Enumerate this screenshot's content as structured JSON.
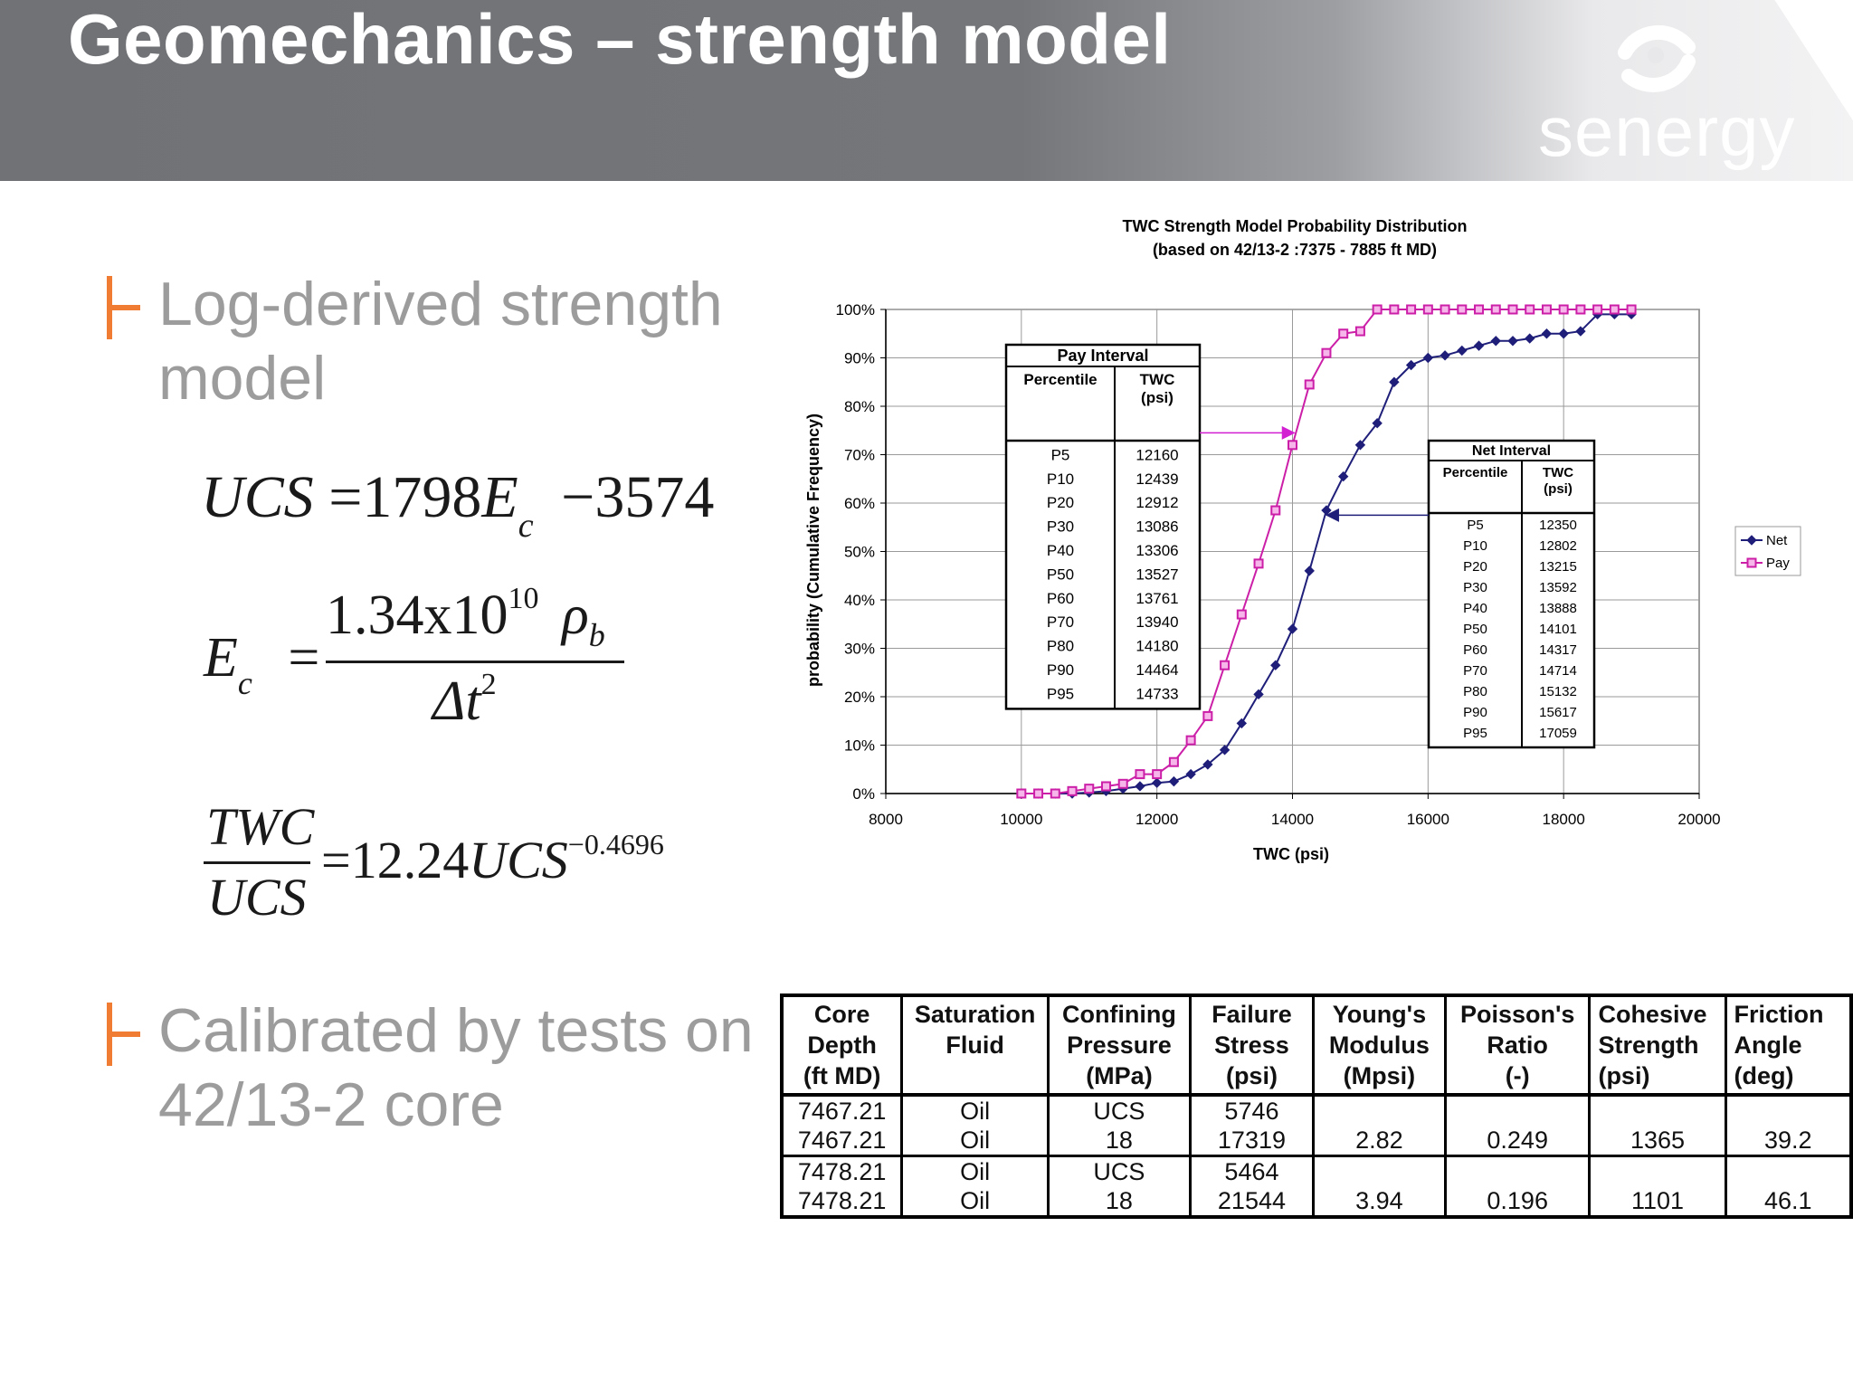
{
  "header": {
    "title": "Geomechanics – strength model",
    "brand": "senergy"
  },
  "bullets": [
    {
      "text_line1": "Log-derived strength",
      "text_line2": "model"
    },
    {
      "text_line1": "Calibrated by tests on",
      "text_line2": "42/13-2 core"
    }
  ],
  "equations": {
    "ucs": {
      "lhs": "UCS",
      "eq": "=",
      "coef": "1798",
      "var": "E",
      "sub": "c",
      "minus": "−",
      "const": "3574"
    },
    "ec": {
      "lhs": "E",
      "sub": "c",
      "eq": "=",
      "num_coef": "1.34x10",
      "num_exp": "10",
      "num_var": "ρ",
      "num_sub": "b",
      "den": "Δt",
      "den_exp": "2"
    },
    "twc": {
      "num": "TWC",
      "den": "UCS",
      "eq": "=",
      "coef": "12.24",
      "var": "UCS",
      "exp": "−0.4696"
    }
  },
  "chart_data": {
    "type": "line",
    "title": "TWC Strength Model Probability Distribution",
    "subtitle": "(based on 42/13-2 :7375 - 7885 ft MD)",
    "xlabel": "TWC (psi)",
    "ylabel": "probability (Cumulative Frequency)",
    "xlim": [
      8000,
      20000
    ],
    "ylim": [
      0,
      1
    ],
    "x_ticks": [
      "8000",
      "10000",
      "12000",
      "14000",
      "16000",
      "18000",
      "20000"
    ],
    "y_ticks": [
      "0%",
      "10%",
      "20%",
      "30%",
      "40%",
      "50%",
      "60%",
      "70%",
      "80%",
      "90%",
      "100%"
    ],
    "grid": true,
    "legend_position": "right",
    "series": [
      {
        "name": "Net",
        "color": "#1f1f7a",
        "marker": "diamond",
        "x": [
          10000,
          10250,
          10500,
          10750,
          11000,
          11250,
          11500,
          11750,
          12000,
          12250,
          12500,
          12750,
          13000,
          13250,
          13500,
          13750,
          14000,
          14250,
          14500,
          14750,
          15000,
          15250,
          15500,
          15750,
          16000,
          16250,
          16500,
          16750,
          17000,
          17250,
          17500,
          17750,
          18000,
          18250,
          18500,
          18750,
          19000
        ],
        "y": [
          0,
          0,
          0,
          0,
          0.002,
          0.005,
          0.01,
          0.015,
          0.022,
          0.025,
          0.04,
          0.06,
          0.09,
          0.145,
          0.205,
          0.265,
          0.34,
          0.46,
          0.585,
          0.655,
          0.72,
          0.765,
          0.85,
          0.885,
          0.9,
          0.905,
          0.915,
          0.925,
          0.935,
          0.935,
          0.94,
          0.95,
          0.95,
          0.955,
          0.99,
          0.99,
          0.99
        ]
      },
      {
        "name": "Pay",
        "color": "#cc1fa8",
        "marker": "square",
        "x": [
          10000,
          10250,
          10500,
          10750,
          11000,
          11250,
          11500,
          11750,
          12000,
          12250,
          12500,
          12750,
          13000,
          13250,
          13500,
          13750,
          14000,
          14250,
          14500,
          14750,
          15000,
          15250,
          15500,
          15750,
          16000,
          16250,
          16500,
          16750,
          17000,
          17250,
          17500,
          17750,
          18000,
          18250,
          18500,
          18750,
          19000
        ],
        "y": [
          0,
          0,
          0,
          0.005,
          0.01,
          0.015,
          0.02,
          0.04,
          0.04,
          0.065,
          0.11,
          0.16,
          0.265,
          0.37,
          0.475,
          0.585,
          0.72,
          0.845,
          0.91,
          0.95,
          0.955,
          1,
          1,
          1,
          1,
          1,
          1,
          1,
          1,
          1,
          1,
          1,
          1,
          1,
          1,
          1,
          1
        ]
      }
    ],
    "annotation_arrows": [
      {
        "from": "Pay Interval",
        "to_series": "Pay",
        "at_y": 0.745
      },
      {
        "from": "Net Interval",
        "to_series": "Net",
        "at_y": 0.575
      }
    ],
    "inset_tables": [
      {
        "title": "Pay Interval",
        "col1": "Percentile",
        "col2": "TWC",
        "col2_unit": "(psi)",
        "rows": [
          [
            "P5",
            "12160"
          ],
          [
            "P10",
            "12439"
          ],
          [
            "P20",
            "12912"
          ],
          [
            "P30",
            "13086"
          ],
          [
            "P40",
            "13306"
          ],
          [
            "P50",
            "13527"
          ],
          [
            "P60",
            "13761"
          ],
          [
            "P70",
            "13940"
          ],
          [
            "P80",
            "14180"
          ],
          [
            "P90",
            "14464"
          ],
          [
            "P95",
            "14733"
          ]
        ]
      },
      {
        "title": "Net Interval",
        "col1": "Percentile",
        "col2": "TWC",
        "col2_unit": "(psi)",
        "rows": [
          [
            "P5",
            "12350"
          ],
          [
            "P10",
            "12802"
          ],
          [
            "P20",
            "13215"
          ],
          [
            "P30",
            "13592"
          ],
          [
            "P40",
            "13888"
          ],
          [
            "P50",
            "14101"
          ],
          [
            "P60",
            "14317"
          ],
          [
            "P70",
            "14714"
          ],
          [
            "P80",
            "15132"
          ],
          [
            "P90",
            "15617"
          ],
          [
            "P95",
            "17059"
          ]
        ]
      }
    ]
  },
  "core_table": {
    "headers": [
      [
        "Core",
        "Depth",
        "(ft MD)"
      ],
      [
        "Saturation",
        "Fluid",
        ""
      ],
      [
        "Confining",
        "Pressure",
        "(MPa)"
      ],
      [
        "Failure",
        "Stress",
        "(psi)"
      ],
      [
        "Young's",
        "Modulus",
        "(Mpsi)"
      ],
      [
        "Poisson's",
        "Ratio",
        "(-)"
      ],
      [
        "Cohesive",
        "Strength",
        "(psi)"
      ],
      [
        "Friction",
        "Angle",
        "(deg)"
      ]
    ],
    "groups": [
      {
        "rows": [
          [
            "7467.21",
            "Oil",
            "UCS",
            "5746",
            "",
            "",
            "",
            ""
          ],
          [
            "7467.21",
            "Oil",
            "18",
            "17319",
            "2.82",
            "0.249",
            "1365",
            "39.2"
          ]
        ]
      },
      {
        "rows": [
          [
            "7478.21",
            "Oil",
            "UCS",
            "5464",
            "",
            "",
            "",
            ""
          ],
          [
            "7478.21",
            "Oil",
            "18",
            "21544",
            "3.94",
            "0.196",
            "1101",
            "46.1"
          ]
        ]
      }
    ]
  }
}
